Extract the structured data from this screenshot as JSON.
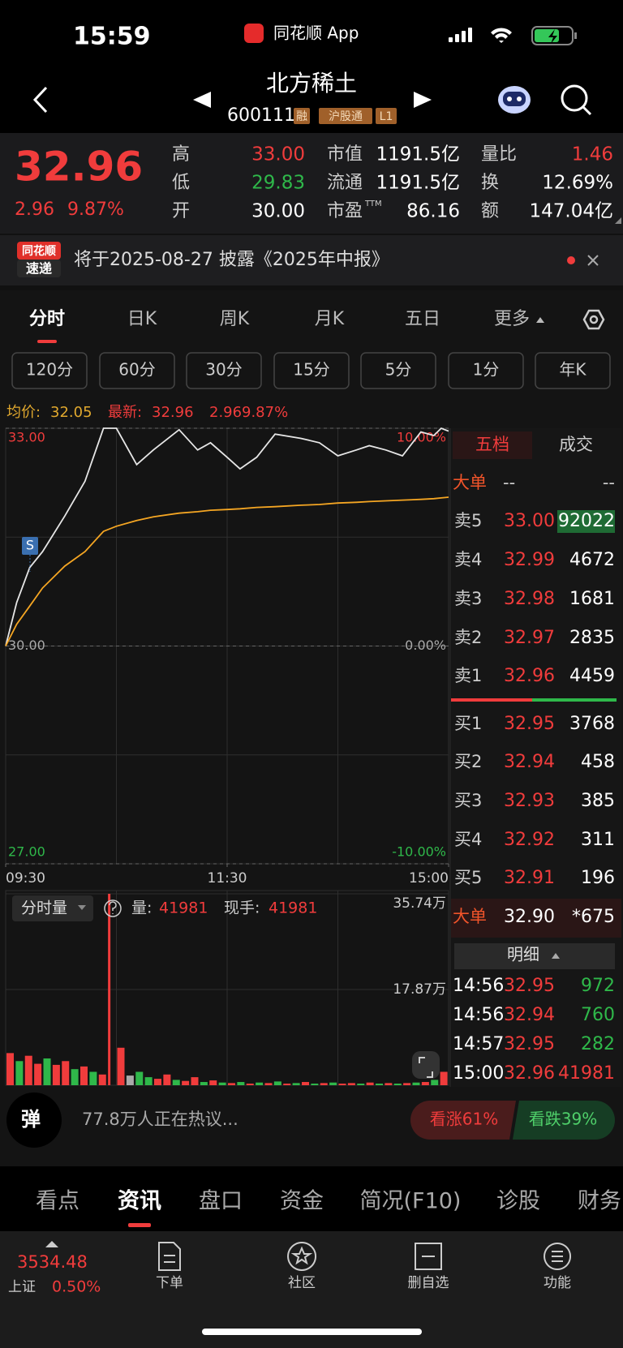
{
  "status_bar": {
    "time": "15:59",
    "app_name": "同花顺 App"
  },
  "header": {
    "title": "北方稀土",
    "code": "600111",
    "badges": [
      "融",
      "沪股通",
      "L1"
    ]
  },
  "quote": {
    "price": "32.96",
    "change": "2.96",
    "change_pct": "9.87%",
    "stats": [
      {
        "label": "高",
        "value": "33.00",
        "color": "#f03c3c"
      },
      {
        "label": "低",
        "value": "29.83",
        "color": "#2fb84a"
      },
      {
        "label": "开",
        "value": "30.00",
        "color": "#ffffff"
      },
      {
        "label": "市值",
        "value": "1191.5亿",
        "color": "#ffffff"
      },
      {
        "label": "流通",
        "value": "1191.5亿",
        "color": "#ffffff"
      },
      {
        "label": "市盈",
        "note": "TTM",
        "value": "86.16",
        "color": "#ffffff"
      },
      {
        "label": "量比",
        "value": "1.46",
        "color": "#f03c3c"
      },
      {
        "label": "换",
        "value": "12.69%",
        "color": "#ffffff"
      },
      {
        "label": "额",
        "value": "147.04亿",
        "color": "#ffffff"
      }
    ]
  },
  "notice": {
    "logo": [
      "同花顺",
      "速递"
    ],
    "text": "将于2025-08-27 披露《2025年中报》"
  },
  "period_tabs": [
    "分时",
    "日K",
    "周K",
    "月K",
    "五日",
    "更多"
  ],
  "minute_tabs": [
    "120分",
    "60分",
    "30分",
    "15分",
    "5分",
    "1分",
    "年K"
  ],
  "chart_info": {
    "avg_label": "均价:",
    "avg": "32.05",
    "latest_label": "最新:",
    "latest": "32.96",
    "change": "2.96",
    "change_pct": "9.87%"
  },
  "chart_data": [
    {
      "type": "line",
      "x": [
        0,
        6,
        13,
        20,
        32,
        43,
        53,
        60,
        71,
        80,
        94,
        104,
        111,
        120,
        127,
        136,
        146,
        160,
        170,
        180,
        190,
        197,
        206,
        215,
        225,
        232,
        236,
        240
      ],
      "xlim": [
        0,
        240
      ],
      "xticks": [
        {
          "value": 0,
          "label": "09:30"
        },
        {
          "value": 120,
          "label": "11:30"
        },
        {
          "value": 240,
          "label": "15:00"
        }
      ],
      "ylim": [
        27,
        33
      ],
      "yticks": [
        {
          "value": 33,
          "label": "33.00"
        },
        {
          "value": 30,
          "label": "30.00"
        },
        {
          "value": 27,
          "label": "27.00"
        }
      ],
      "y2lim": [
        -10,
        10
      ],
      "y2ticks": [
        {
          "value": 10,
          "label": "10.00%"
        },
        {
          "value": 0,
          "label": "0.00%"
        },
        {
          "value": -10,
          "label": "-10.00%"
        }
      ],
      "annotations": [
        {
          "text": "S"
        }
      ],
      "series": [
        {
          "color": "#e6e6e6",
          "values": [
            30.0,
            30.6,
            31.08,
            31.3,
            31.79,
            32.27,
            33.0,
            33.0,
            32.5,
            32.7,
            32.98,
            32.7,
            32.8,
            32.6,
            32.44,
            32.6,
            32.92,
            32.86,
            32.8,
            32.62,
            32.7,
            32.76,
            32.7,
            32.62,
            32.95,
            32.9,
            33.0,
            32.96
          ]
        },
        {
          "color": "#f5a623",
          "values": [
            30.0,
            30.3,
            30.55,
            30.8,
            31.1,
            31.3,
            31.58,
            31.65,
            31.73,
            31.78,
            31.83,
            31.85,
            31.87,
            31.88,
            31.89,
            31.91,
            31.92,
            31.94,
            31.95,
            31.97,
            31.98,
            31.99,
            32.0,
            32.01,
            32.02,
            32.03,
            32.04,
            32.05
          ]
        }
      ]
    },
    {
      "type": "bar",
      "x": [
        0,
        5,
        10,
        15,
        20,
        25,
        30,
        35,
        40,
        45,
        50,
        55,
        60,
        65,
        70,
        75,
        80,
        85,
        90,
        95,
        100,
        105,
        110,
        115,
        120,
        125,
        130,
        135,
        140,
        145,
        150,
        155,
        160,
        165,
        170,
        175,
        180,
        185,
        190,
        195,
        200,
        205,
        210,
        215,
        220,
        225,
        230,
        235
      ],
      "xlim": [
        0,
        240
      ],
      "ylim": [
        0,
        357400
      ],
      "yticks": [
        {
          "value": 357400,
          "label": "35.74万"
        },
        {
          "value": 178700,
          "label": "17.87万"
        }
      ],
      "values": [
        60000,
        45000,
        55000,
        40000,
        50000,
        38000,
        45000,
        30000,
        35000,
        25000,
        20000,
        357400,
        70000,
        18000,
        25000,
        15000,
        12000,
        20000,
        10000,
        8000,
        15000,
        6000,
        9000,
        5000,
        4000,
        6000,
        3000,
        5000,
        4000,
        7000,
        3000,
        4000,
        6000,
        3000,
        4000,
        5000,
        3000,
        4000,
        3000,
        5000,
        3000,
        4000,
        3000,
        4000,
        5000,
        6000,
        10000,
        25000
      ],
      "colors": [
        "#f03c3c",
        "#2fb84a",
        "#f03c3c",
        "#f03c3c",
        "#2fb84a",
        "#f03c3c",
        "#f03c3c",
        "#2fb84a",
        "#f03c3c",
        "#2fb84a",
        "#f03c3c",
        "#f03c3c",
        "#f03c3c",
        "#aaaaaa",
        "#2fb84a",
        "#2fb84a",
        "#f03c3c",
        "#f03c3c",
        "#2fb84a",
        "#f03c3c",
        "#f03c3c",
        "#2fb84a",
        "#f03c3c",
        "#2fb84a",
        "#f03c3c",
        "#2fb84a",
        "#f03c3c",
        "#2fb84a",
        "#f03c3c",
        "#2fb84a",
        "#f03c3c",
        "#2fb84a",
        "#f03c3c",
        "#2fb84a",
        "#f03c3c",
        "#2fb84a",
        "#f03c3c",
        "#f03c3c",
        "#2fb84a",
        "#f03c3c",
        "#2fb84a",
        "#f03c3c",
        "#2fb84a",
        "#f03c3c",
        "#2fb84a",
        "#f03c3c",
        "#2fb84a",
        "#f03c3c"
      ]
    }
  ],
  "volume_info": {
    "selector": "分时量",
    "volume_label": "量:",
    "volume": "41981",
    "hand_label": "现手:",
    "hand": "41981"
  },
  "order_book": {
    "tabs": [
      "五档",
      "成交"
    ],
    "big_order": {
      "label": "大单",
      "values": [
        "--",
        "--"
      ]
    },
    "asks": [
      {
        "label": "卖5",
        "price": "33.00",
        "volume": "92022"
      },
      {
        "label": "卖4",
        "price": "32.99",
        "volume": "4672"
      },
      {
        "label": "卖3",
        "price": "32.98",
        "volume": "1681"
      },
      {
        "label": "卖2",
        "price": "32.97",
        "volume": "2835"
      },
      {
        "label": "卖1",
        "price": "32.96",
        "volume": "4459"
      }
    ],
    "bids": [
      {
        "label": "买1",
        "price": "32.95",
        "volume": "3768"
      },
      {
        "label": "买2",
        "price": "32.94",
        "volume": "458"
      },
      {
        "label": "买3",
        "price": "32.93",
        "volume": "385"
      },
      {
        "label": "买4",
        "price": "32.92",
        "volume": "311"
      },
      {
        "label": "买5",
        "price": "32.91",
        "volume": "196"
      }
    ],
    "big_order_bottom": {
      "label": "大单",
      "price": "32.90",
      "volume": "*675"
    }
  },
  "trades": {
    "title": "明细",
    "rows": [
      {
        "time": "14:56",
        "price": "32.95",
        "volume": "972",
        "color": "#2fb84a"
      },
      {
        "time": "14:56",
        "price": "32.94",
        "volume": "760",
        "color": "#2fb84a"
      },
      {
        "time": "14:57",
        "price": "32.95",
        "volume": "282",
        "color": "#2fb84a"
      },
      {
        "time": "15:00",
        "price": "32.96",
        "volume": "41981",
        "color": "#f03c3c"
      }
    ]
  },
  "discussion": {
    "icon": "弹",
    "text": "77.8万人正在热议...",
    "bull": "看涨61%",
    "bear": "看跌39%"
  },
  "info_tabs": [
    "看点",
    "资讯",
    "盘口",
    "资金",
    "简况(F10)",
    "诊股",
    "财务"
  ],
  "bottom_nav": {
    "index_value": "3534.48",
    "index_name": "上证",
    "index_change": "0.50%",
    "items": [
      "下单",
      "社区",
      "删自选",
      "功能"
    ]
  }
}
